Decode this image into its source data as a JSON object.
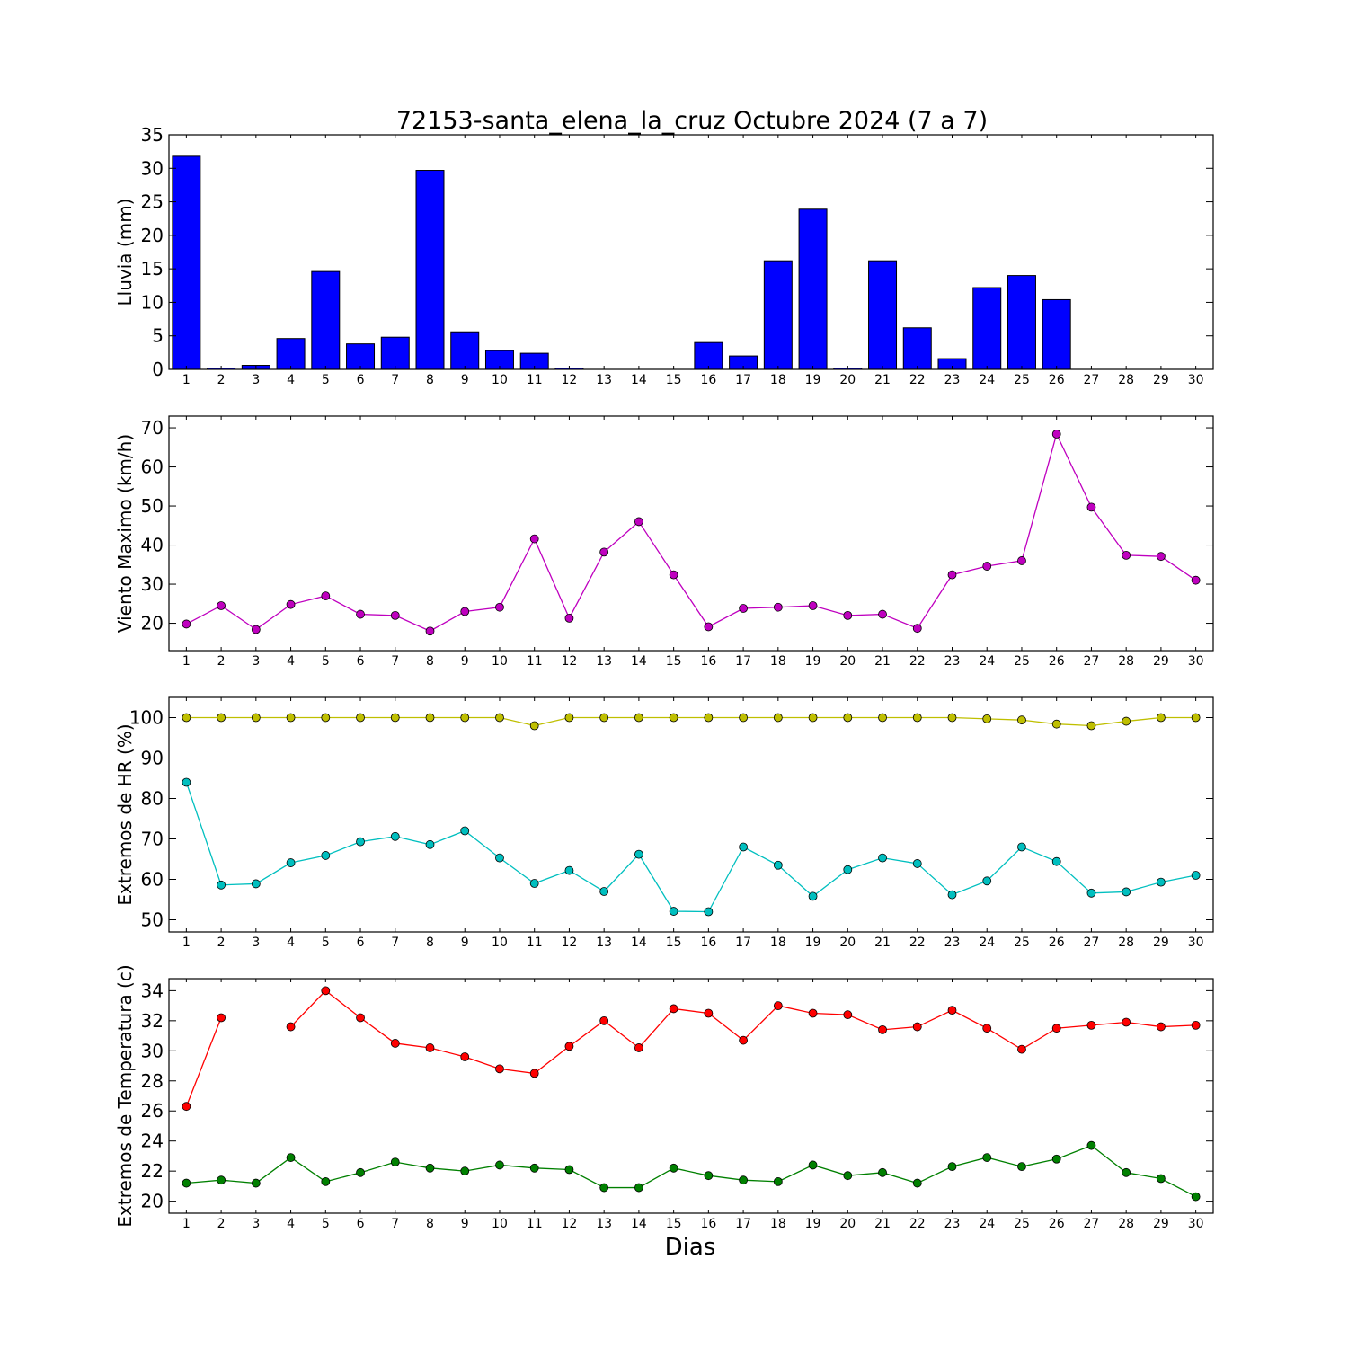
{
  "figure": {
    "title": "72153-santa_elena_la_cruz Octubre 2024  (7 a 7)",
    "xlabel": "Dias"
  },
  "chart_data": [
    {
      "type": "bar",
      "ylabel": "Lluvia (mm)",
      "ylim": [
        0,
        35
      ],
      "yticks": [
        0,
        5,
        10,
        15,
        20,
        25,
        30,
        35
      ],
      "x": [
        1,
        2,
        3,
        4,
        5,
        6,
        7,
        8,
        9,
        10,
        11,
        12,
        13,
        14,
        15,
        16,
        17,
        18,
        19,
        20,
        21,
        22,
        23,
        24,
        25,
        26,
        27,
        28,
        29,
        30
      ],
      "series": [
        {
          "color": "#0000ff",
          "values": [
            31.8,
            0.2,
            0.6,
            4.6,
            14.6,
            3.8,
            4.8,
            29.7,
            5.6,
            2.8,
            2.4,
            0.2,
            0,
            0,
            0,
            4.0,
            2.0,
            16.2,
            23.9,
            0.2,
            16.2,
            6.2,
            1.6,
            12.2,
            14.0,
            10.4,
            0,
            0,
            0,
            0
          ]
        }
      ]
    },
    {
      "type": "line",
      "ylabel": "Viento Maximo (km/h)",
      "ylim": [
        13,
        73
      ],
      "yticks": [
        20,
        30,
        40,
        50,
        60,
        70
      ],
      "x": [
        1,
        2,
        3,
        4,
        5,
        6,
        7,
        8,
        9,
        10,
        11,
        12,
        13,
        14,
        15,
        16,
        17,
        18,
        19,
        20,
        21,
        22,
        23,
        24,
        25,
        26,
        27,
        28,
        29,
        30
      ],
      "series": [
        {
          "color": "#bf00bf",
          "values": [
            19.8,
            24.5,
            18.4,
            24.8,
            27.0,
            22.3,
            22.0,
            18.0,
            23.0,
            24.1,
            41.6,
            21.3,
            38.2,
            46.0,
            32.4,
            19.1,
            23.8,
            24.1,
            24.5,
            22.0,
            22.3,
            18.7,
            32.4,
            34.6,
            36.0,
            68.4,
            49.7,
            37.4,
            37.1,
            31.0
          ]
        }
      ]
    },
    {
      "type": "line",
      "ylabel": "Extremos de HR (%)",
      "ylim": [
        47,
        105
      ],
      "yticks": [
        50,
        60,
        70,
        80,
        90,
        100
      ],
      "x": [
        1,
        2,
        3,
        4,
        5,
        6,
        7,
        8,
        9,
        10,
        11,
        12,
        13,
        14,
        15,
        16,
        17,
        18,
        19,
        20,
        21,
        22,
        23,
        24,
        25,
        26,
        27,
        28,
        29,
        30
      ],
      "series": [
        {
          "color": "#bfbf00",
          "values": [
            100,
            100,
            100,
            100,
            100,
            100,
            100,
            100,
            100,
            100,
            98,
            100,
            100,
            100,
            100,
            100,
            100,
            100,
            100,
            100,
            100,
            100,
            100,
            99.7,
            99.4,
            98.4,
            98,
            99.1,
            100,
            100
          ]
        },
        {
          "color": "#00bfbf",
          "values": [
            84,
            58.6,
            58.9,
            64.1,
            65.9,
            69.3,
            70.6,
            68.6,
            72.0,
            65.3,
            59.0,
            62.2,
            57.0,
            66.2,
            52.1,
            52.0,
            68.0,
            63.5,
            55.8,
            62.4,
            65.3,
            63.9,
            56.2,
            59.6,
            68.0,
            64.4,
            56.6,
            56.9,
            59.3,
            61.0
          ]
        }
      ]
    },
    {
      "type": "line",
      "ylabel": "Extremos de Temperatura (c)",
      "ylim": [
        19.2,
        34.8
      ],
      "yticks": [
        20,
        22,
        24,
        26,
        28,
        30,
        32,
        34
      ],
      "x": [
        1,
        2,
        3,
        4,
        5,
        6,
        7,
        8,
        9,
        10,
        11,
        12,
        13,
        14,
        15,
        16,
        17,
        18,
        19,
        20,
        21,
        22,
        23,
        24,
        25,
        26,
        27,
        28,
        29,
        30
      ],
      "series": [
        {
          "color": "#ff0000",
          "values": [
            26.3,
            32.2,
            null,
            31.6,
            34.0,
            32.2,
            30.5,
            30.2,
            29.6,
            28.8,
            28.5,
            30.3,
            32.0,
            30.2,
            32.8,
            32.5,
            30.7,
            33.0,
            32.5,
            32.4,
            31.4,
            31.6,
            32.7,
            31.5,
            30.1,
            31.5,
            31.7,
            31.9,
            31.6,
            31.7
          ]
        },
        {
          "color": "#008000",
          "values": [
            21.2,
            21.4,
            21.2,
            22.9,
            21.3,
            21.9,
            22.6,
            22.2,
            22.0,
            22.4,
            22.2,
            22.1,
            20.9,
            20.9,
            22.2,
            21.7,
            21.4,
            21.3,
            22.4,
            21.7,
            21.9,
            21.2,
            22.3,
            22.9,
            22.3,
            22.8,
            23.7,
            21.9,
            21.5,
            20.3
          ]
        }
      ]
    }
  ]
}
